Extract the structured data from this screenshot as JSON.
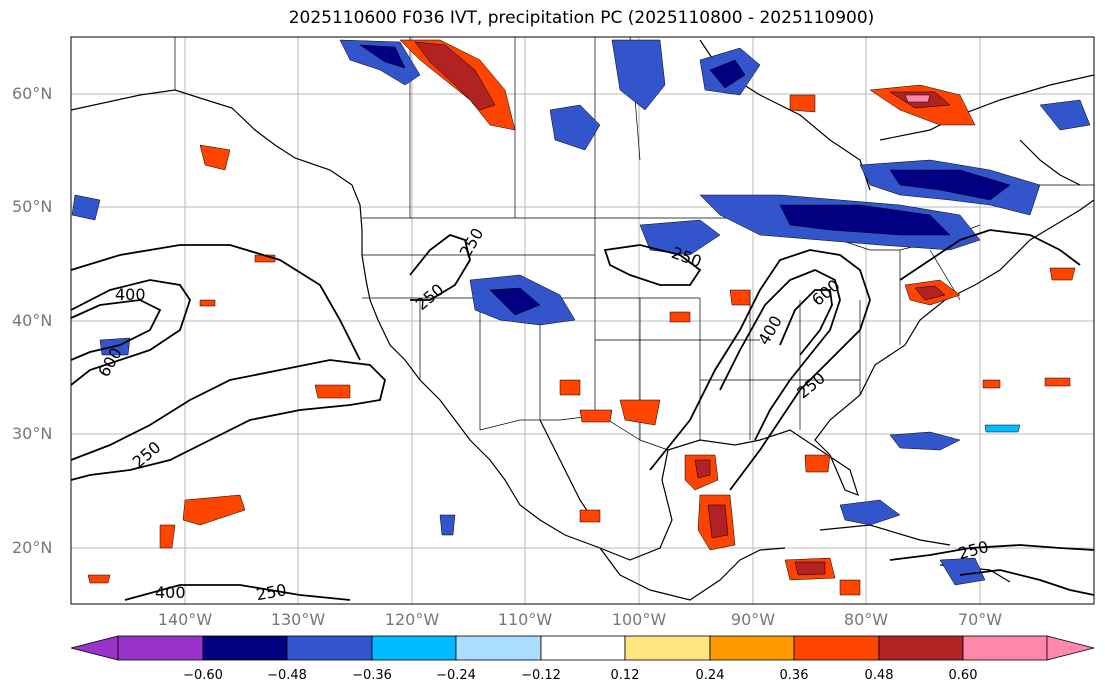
{
  "title": "2025110600 F036 IVT, precipitation PC (2025110800 - 2025110900)",
  "map": {
    "extent_lon": [
      -150,
      -60
    ],
    "extent_lat": [
      15,
      65
    ],
    "lat_ticks": [
      {
        "value": 20,
        "label": "20°N"
      },
      {
        "value": 30,
        "label": "30°N"
      },
      {
        "value": 40,
        "label": "40°N"
      },
      {
        "value": 50,
        "label": "50°N"
      },
      {
        "value": 60,
        "label": "60°N"
      }
    ],
    "lon_ticks": [
      {
        "value": -140,
        "label": "140°W"
      },
      {
        "value": -130,
        "label": "130°W"
      },
      {
        "value": -120,
        "label": "120°W"
      },
      {
        "value": -110,
        "label": "110°W"
      },
      {
        "value": -100,
        "label": "100°W"
      },
      {
        "value": -90,
        "label": "90°W"
      },
      {
        "value": -80,
        "label": "80°W"
      },
      {
        "value": -70,
        "label": "70°W"
      }
    ],
    "contour_labels": [
      "400",
      "600",
      "250",
      "250",
      "250",
      "400",
      "600",
      "250",
      "250",
      "400",
      "250",
      "250"
    ]
  },
  "colorbar": {
    "ticks": [
      "−0.60",
      "−0.48",
      "−0.36",
      "−0.24",
      "−0.12",
      "0.12",
      "0.24",
      "0.36",
      "0.48",
      "0.60"
    ],
    "colors": [
      "#9933cc",
      "#000080",
      "#3355cc",
      "#00bbff",
      "#aaddff",
      "#ffffff",
      "#ffe680",
      "#ff9900",
      "#ff4400",
      "#b22222",
      "#ff88aa"
    ]
  }
}
